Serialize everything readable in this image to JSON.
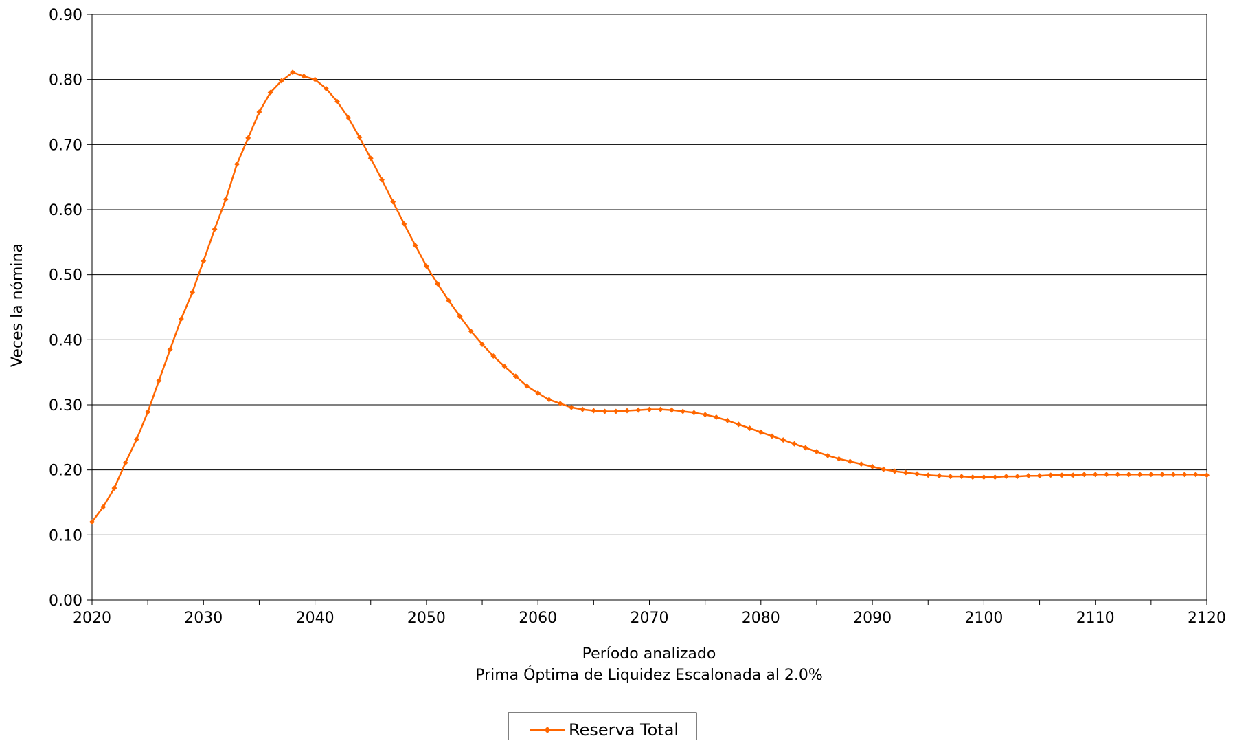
{
  "chart_data": {
    "type": "line",
    "xlabel": "Período analizado",
    "subtitle": "Prima Óptima de Liquidez Escalonada al 2.0%",
    "ylabel": "Veces la nómina",
    "xlim": [
      2020,
      2120
    ],
    "ylim": [
      0,
      0.9
    ],
    "x_ticks": [
      "2020",
      "2030",
      "2040",
      "2050",
      "2060",
      "2070",
      "2080",
      "2090",
      "2100",
      "2110",
      "2120"
    ],
    "y_ticks": [
      "0.00",
      "0.10",
      "0.20",
      "0.30",
      "0.40",
      "0.50",
      "0.60",
      "0.70",
      "0.80",
      "0.90"
    ],
    "grid": "horizontal",
    "legend_position": "bottom-center",
    "colors": {
      "series": "#FF6600",
      "grid": "#000000",
      "axis": "#000000"
    },
    "series": [
      {
        "name": "Reserva Total",
        "x_start": 2020,
        "x_step": 1,
        "values": [
          0.12,
          0.143,
          0.172,
          0.211,
          0.247,
          0.289,
          0.337,
          0.385,
          0.432,
          0.473,
          0.521,
          0.57,
          0.616,
          0.67,
          0.71,
          0.75,
          0.78,
          0.798,
          0.811,
          0.805,
          0.8,
          0.786,
          0.766,
          0.741,
          0.711,
          0.679,
          0.646,
          0.612,
          0.578,
          0.545,
          0.513,
          0.486,
          0.46,
          0.436,
          0.413,
          0.393,
          0.375,
          0.359,
          0.344,
          0.329,
          0.318,
          0.308,
          0.302,
          0.296,
          0.293,
          0.291,
          0.29,
          0.29,
          0.291,
          0.292,
          0.293,
          0.293,
          0.292,
          0.29,
          0.288,
          0.285,
          0.281,
          0.276,
          0.27,
          0.264,
          0.258,
          0.252,
          0.246,
          0.24,
          0.234,
          0.228,
          0.222,
          0.217,
          0.213,
          0.209,
          0.205,
          0.201,
          0.198,
          0.196,
          0.194,
          0.192,
          0.191,
          0.19,
          0.19,
          0.189,
          0.189,
          0.189,
          0.19,
          0.19,
          0.191,
          0.191,
          0.192,
          0.192,
          0.192,
          0.193,
          0.193,
          0.193,
          0.193,
          0.193,
          0.193,
          0.193,
          0.193,
          0.193,
          0.193,
          0.193,
          0.192
        ]
      }
    ]
  }
}
